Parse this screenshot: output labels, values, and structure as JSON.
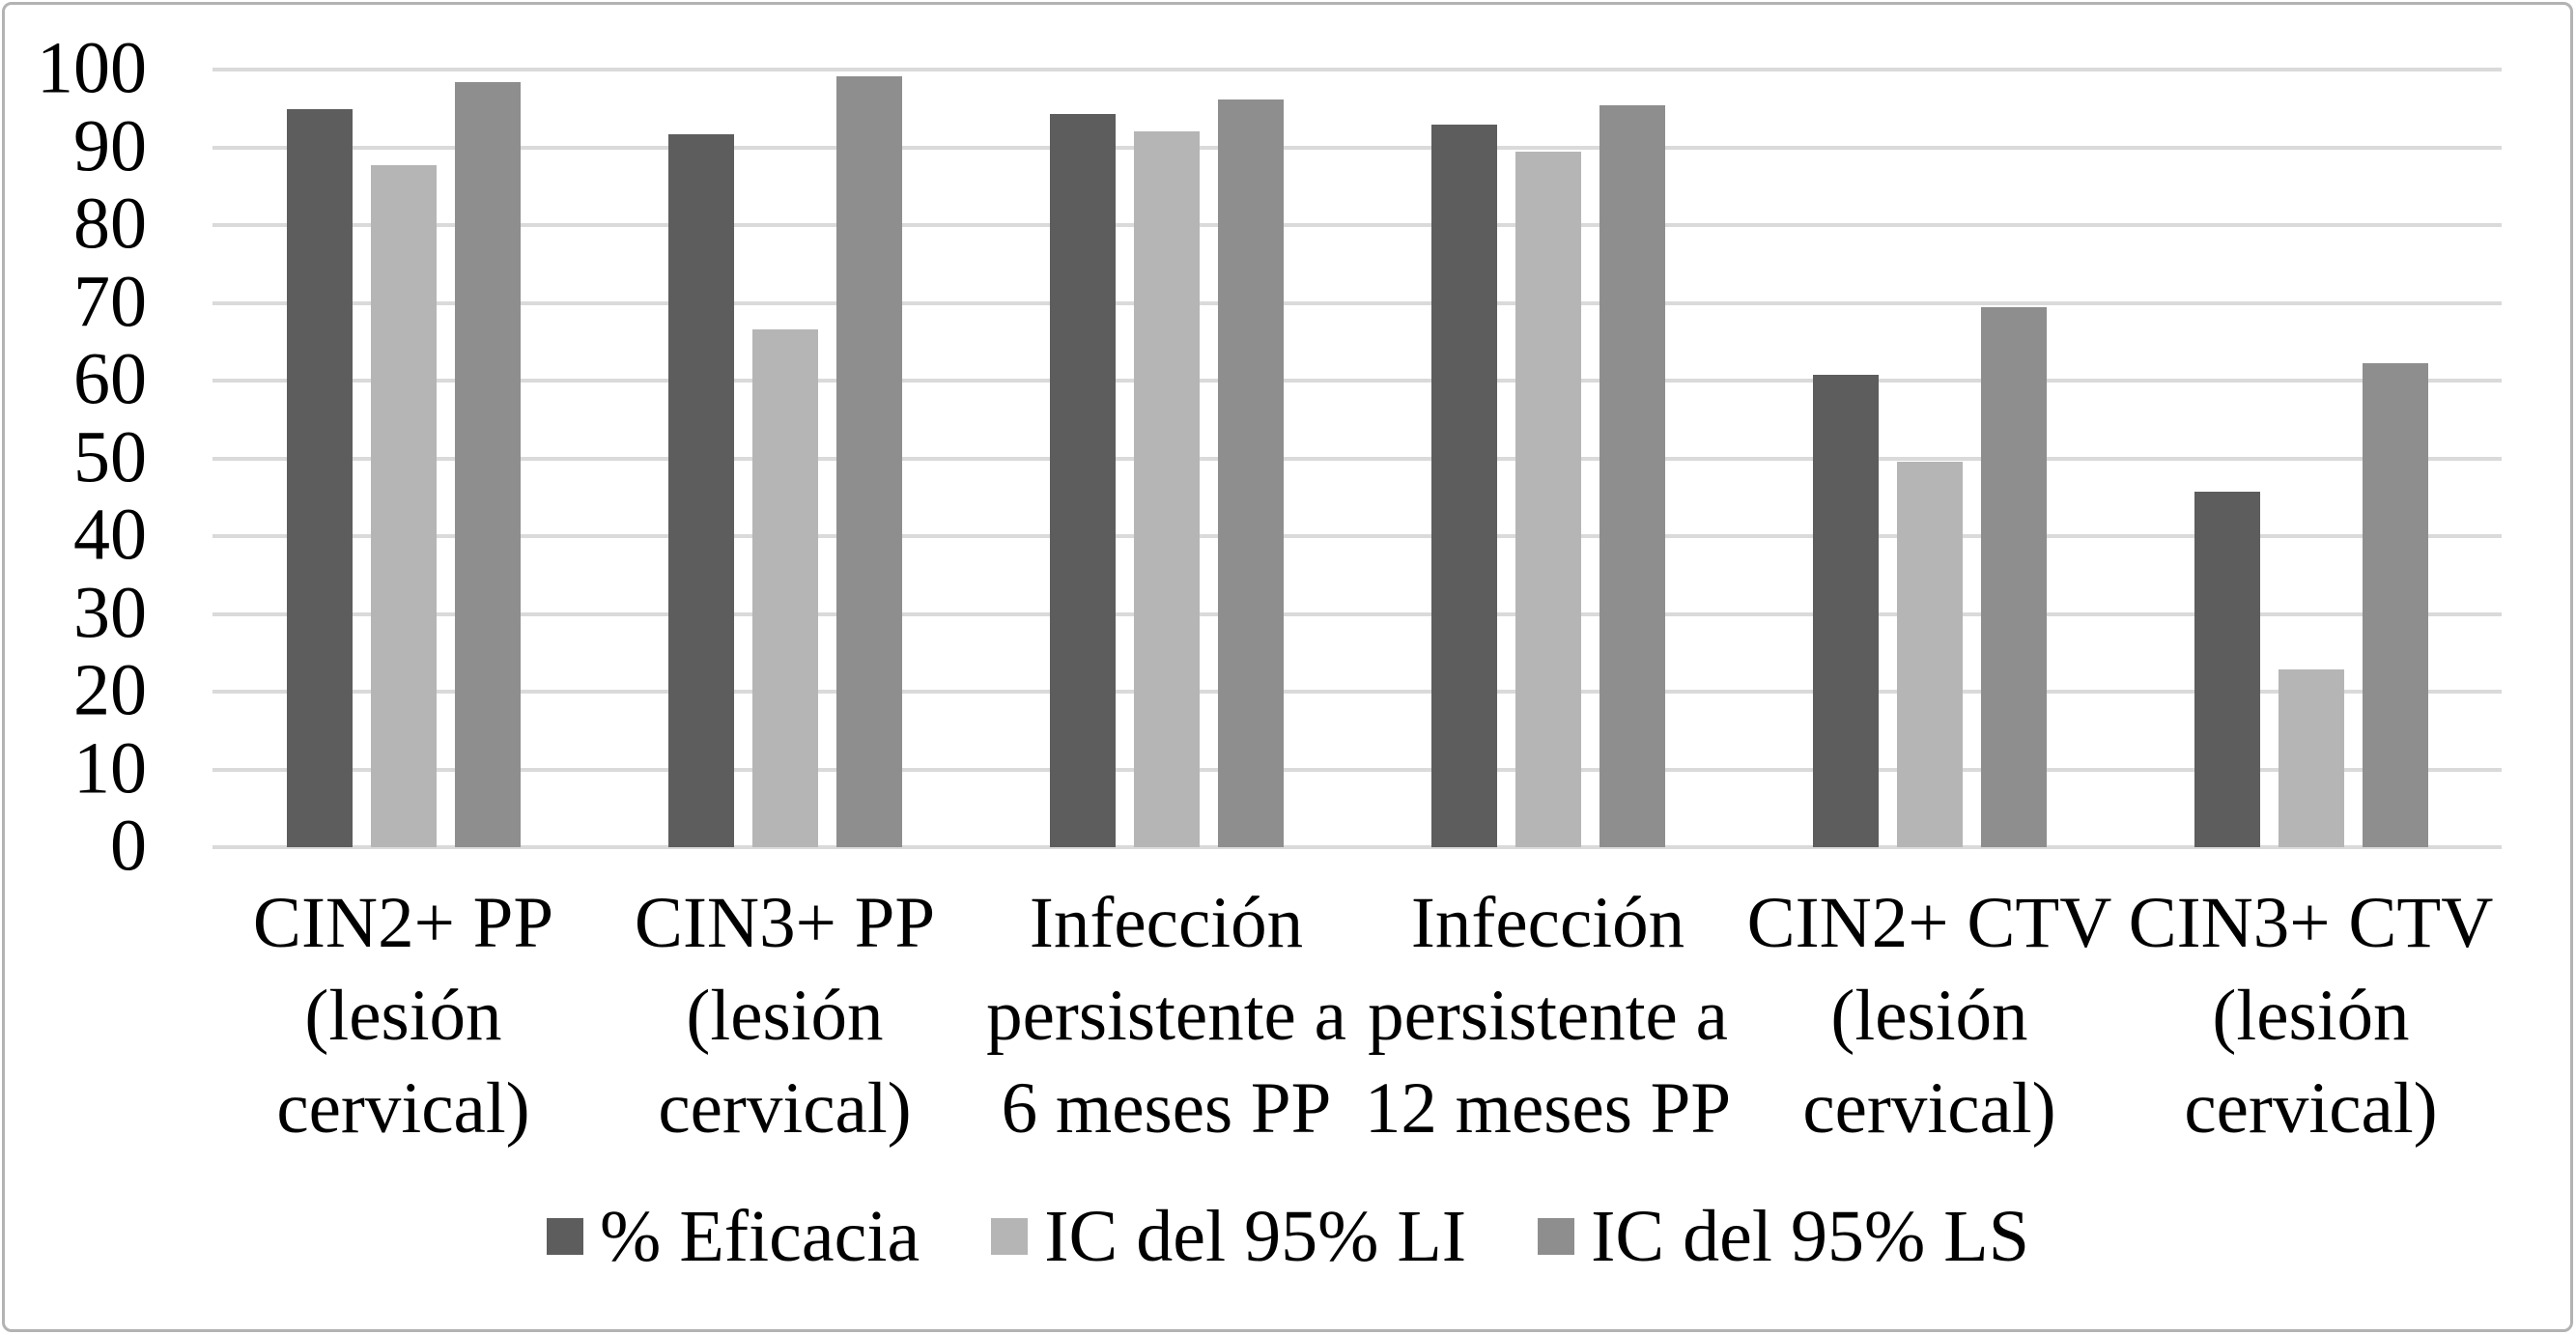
{
  "chart_data": {
    "type": "bar",
    "categories": [
      "CIN2+ PP\n(lesión\ncervical)",
      "CIN3+ PP\n(lesión\ncervical)",
      "Infección\npersistente a\n6 meses PP",
      "Infección\npersistente a\n12 meses PP",
      "CIN2+ CTV\n(lesión\ncervical)",
      "CIN3+ CTV\n(lesión\ncervical)"
    ],
    "series": [
      {
        "name": "% Eficacia",
        "color": "#5d5d5d",
        "values": [
          94.9,
          91.7,
          94.3,
          92.9,
          60.7,
          45.7
        ]
      },
      {
        "name": "IC del 95% LI",
        "color": "#b5b5b5",
        "values": [
          87.7,
          66.6,
          92.0,
          89.4,
          49.6,
          22.9
        ]
      },
      {
        "name": "IC del 95% LS",
        "color": "#8e8e8e",
        "values": [
          98.4,
          99.1,
          96.1,
          95.4,
          69.5,
          62.2
        ]
      }
    ],
    "title": "",
    "xlabel": "",
    "ylabel": "",
    "ylim": [
      0,
      100
    ],
    "yticks": [
      0,
      10,
      20,
      30,
      40,
      50,
      60,
      70,
      80,
      90,
      100
    ],
    "grid": true,
    "gridline_color": "#dadada",
    "legend_position": "bottom"
  },
  "frame": {
    "border_color": "#b3b3b3",
    "background": "#ffffff"
  }
}
